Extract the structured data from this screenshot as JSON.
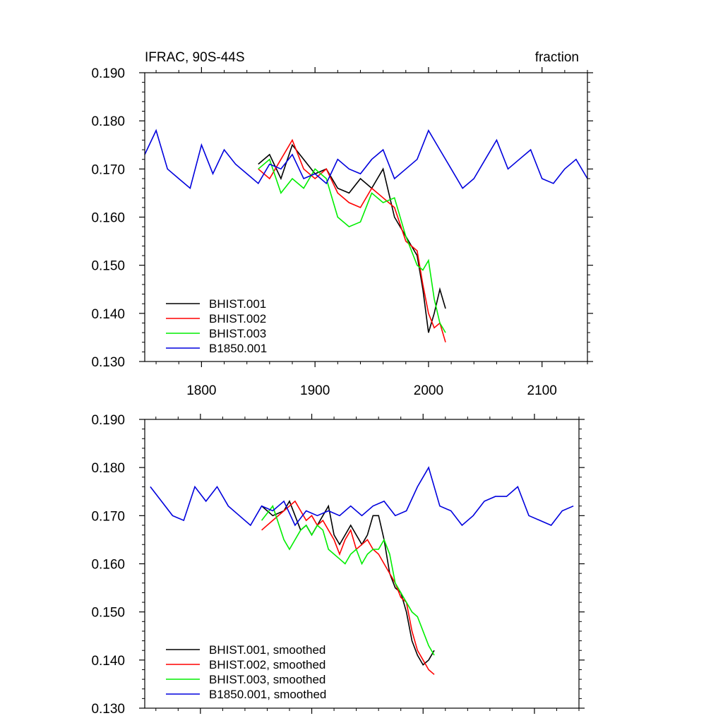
{
  "chart_data": [
    {
      "type": "line",
      "title": "IFRAC, 90S-44S",
      "units": "fraction",
      "xlim": [
        1750,
        2140
      ],
      "ylim": [
        0.13,
        0.19
      ],
      "x_ticks": [
        1800,
        1900,
        2000,
        2100
      ],
      "y_ticks": [
        "0.130",
        "0.140",
        "0.150",
        "0.160",
        "0.170",
        "0.180",
        "0.190"
      ],
      "legend_position": "bottom-left",
      "series": [
        {
          "name": "BHIST.001",
          "color": "#000000",
          "x": [
            1850,
            1860,
            1870,
            1880,
            1890,
            1900,
            1910,
            1920,
            1930,
            1940,
            1950,
            1960,
            1970,
            1980,
            1990,
            1995,
            2000,
            2005,
            2010,
            2015
          ],
          "y": [
            0.171,
            0.173,
            0.168,
            0.175,
            0.172,
            0.169,
            0.17,
            0.166,
            0.165,
            0.168,
            0.166,
            0.17,
            0.16,
            0.156,
            0.152,
            0.145,
            0.136,
            0.14,
            0.145,
            0.141
          ]
        },
        {
          "name": "BHIST.002",
          "color": "#ff0000",
          "x": [
            1850,
            1860,
            1870,
            1880,
            1890,
            1900,
            1910,
            1920,
            1930,
            1940,
            1950,
            1960,
            1970,
            1980,
            1990,
            1995,
            2000,
            2005,
            2010,
            2015
          ],
          "y": [
            0.17,
            0.168,
            0.172,
            0.176,
            0.17,
            0.168,
            0.17,
            0.165,
            0.163,
            0.162,
            0.166,
            0.164,
            0.162,
            0.155,
            0.153,
            0.146,
            0.14,
            0.137,
            0.138,
            0.134
          ]
        },
        {
          "name": "BHIST.003",
          "color": "#00ee00",
          "x": [
            1850,
            1860,
            1870,
            1880,
            1890,
            1900,
            1910,
            1920,
            1930,
            1940,
            1950,
            1960,
            1970,
            1980,
            1990,
            1995,
            2000,
            2005,
            2010,
            2015
          ],
          "y": [
            0.17,
            0.172,
            0.165,
            0.168,
            0.166,
            0.17,
            0.168,
            0.16,
            0.158,
            0.159,
            0.165,
            0.163,
            0.164,
            0.156,
            0.15,
            0.149,
            0.151,
            0.143,
            0.138,
            0.136
          ]
        },
        {
          "name": "B1850.001",
          "color": "#0000dd",
          "x": [
            1750,
            1760,
            1770,
            1780,
            1790,
            1800,
            1810,
            1820,
            1830,
            1840,
            1850,
            1860,
            1870,
            1880,
            1890,
            1900,
            1910,
            1920,
            1930,
            1940,
            1950,
            1960,
            1970,
            1980,
            1990,
            2000,
            2010,
            2020,
            2030,
            2040,
            2050,
            2060,
            2070,
            2080,
            2090,
            2100,
            2110,
            2120,
            2130,
            2140
          ],
          "y": [
            0.173,
            0.178,
            0.17,
            0.168,
            0.166,
            0.175,
            0.169,
            0.174,
            0.171,
            0.169,
            0.167,
            0.171,
            0.17,
            0.173,
            0.168,
            0.169,
            0.167,
            0.172,
            0.17,
            0.169,
            0.172,
            0.174,
            0.168,
            0.17,
            0.172,
            0.178,
            0.174,
            0.17,
            0.166,
            0.168,
            0.172,
            0.176,
            0.17,
            0.172,
            0.174,
            0.168,
            0.167,
            0.17,
            0.172,
            0.168
          ]
        }
      ]
    },
    {
      "type": "line",
      "xlim": [
        1750,
        2140
      ],
      "ylim": [
        0.13,
        0.19
      ],
      "y_ticks": [
        "0.130",
        "0.140",
        "0.150",
        "0.160",
        "0.170",
        "0.180",
        "0.190"
      ],
      "legend_position": "bottom-left",
      "series": [
        {
          "name": "BHIST.001, smoothed",
          "color": "#000000",
          "x": [
            1855,
            1865,
            1875,
            1880,
            1885,
            1890,
            1895,
            1900,
            1905,
            1910,
            1915,
            1920,
            1925,
            1930,
            1935,
            1940,
            1945,
            1950,
            1955,
            1960,
            1965,
            1970,
            1975,
            1980,
            1985,
            1990,
            1995,
            2000,
            2005,
            2010
          ],
          "y": [
            0.172,
            0.17,
            0.171,
            0.173,
            0.17,
            0.167,
            0.168,
            0.166,
            0.168,
            0.17,
            0.172,
            0.166,
            0.164,
            0.166,
            0.168,
            0.166,
            0.164,
            0.166,
            0.17,
            0.17,
            0.165,
            0.158,
            0.155,
            0.154,
            0.15,
            0.144,
            0.141,
            0.139,
            0.14,
            0.142
          ]
        },
        {
          "name": "BHIST.002, smoothed",
          "color": "#ff0000",
          "x": [
            1855,
            1865,
            1875,
            1880,
            1885,
            1890,
            1895,
            1900,
            1905,
            1910,
            1915,
            1920,
            1925,
            1930,
            1935,
            1940,
            1945,
            1950,
            1955,
            1960,
            1965,
            1970,
            1975,
            1980,
            1985,
            1990,
            1995,
            2000,
            2005,
            2010
          ],
          "y": [
            0.167,
            0.169,
            0.171,
            0.172,
            0.173,
            0.171,
            0.169,
            0.17,
            0.168,
            0.169,
            0.167,
            0.165,
            0.162,
            0.165,
            0.167,
            0.163,
            0.164,
            0.165,
            0.163,
            0.162,
            0.16,
            0.158,
            0.156,
            0.153,
            0.152,
            0.146,
            0.142,
            0.14,
            0.138,
            0.137
          ]
        },
        {
          "name": "BHIST.003, smoothed",
          "color": "#00ee00",
          "x": [
            1855,
            1865,
            1875,
            1880,
            1885,
            1890,
            1895,
            1900,
            1905,
            1910,
            1915,
            1920,
            1925,
            1930,
            1935,
            1940,
            1945,
            1950,
            1955,
            1960,
            1965,
            1970,
            1975,
            1980,
            1985,
            1990,
            1995,
            2000,
            2005,
            2010
          ],
          "y": [
            0.169,
            0.172,
            0.165,
            0.163,
            0.165,
            0.167,
            0.168,
            0.166,
            0.168,
            0.167,
            0.163,
            0.162,
            0.161,
            0.16,
            0.162,
            0.163,
            0.16,
            0.162,
            0.163,
            0.163,
            0.165,
            0.162,
            0.156,
            0.154,
            0.152,
            0.15,
            0.149,
            0.146,
            0.143,
            0.141
          ]
        },
        {
          "name": "B1850.001, smoothed",
          "color": "#0000dd",
          "x": [
            1755,
            1765,
            1775,
            1785,
            1795,
            1805,
            1815,
            1825,
            1835,
            1845,
            1855,
            1865,
            1875,
            1885,
            1895,
            1905,
            1915,
            1925,
            1935,
            1945,
            1955,
            1965,
            1975,
            1985,
            1995,
            2005,
            2015,
            2025,
            2035,
            2045,
            2055,
            2065,
            2075,
            2085,
            2095,
            2105,
            2115,
            2125,
            2135
          ],
          "y": [
            0.176,
            0.173,
            0.17,
            0.169,
            0.176,
            0.173,
            0.176,
            0.172,
            0.17,
            0.168,
            0.172,
            0.171,
            0.173,
            0.168,
            0.171,
            0.17,
            0.171,
            0.17,
            0.172,
            0.17,
            0.172,
            0.173,
            0.17,
            0.171,
            0.176,
            0.18,
            0.172,
            0.171,
            0.168,
            0.17,
            0.173,
            0.174,
            0.174,
            0.176,
            0.17,
            0.169,
            0.168,
            0.171,
            0.172
          ]
        }
      ]
    }
  ]
}
